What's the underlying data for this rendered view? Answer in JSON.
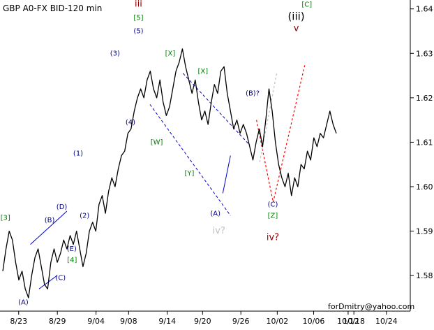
{
  "chart_data": {
    "type": "line",
    "title": "GBP A0-FX BID-120 min",
    "xlabel": "",
    "ylabel": "",
    "x_ticks": [
      "8/23",
      "8/29",
      "9/04",
      "9/08",
      "9/14",
      "9/20",
      "9/26",
      "10/02",
      "10/06",
      "10/12",
      "10/18",
      "10/24"
    ],
    "ylim": [
      1.572,
      1.642
    ],
    "y_ticks": [
      "1.64",
      "1.63",
      "1.62",
      "1.61",
      "1.60",
      "1.59",
      "1.58"
    ],
    "grid": false,
    "series": [
      {
        "values": [
          1.581,
          1.586,
          1.59,
          1.588,
          1.583,
          1.579,
          1.581,
          1.577,
          1.575,
          1.58,
          1.584,
          1.586,
          1.582,
          1.578,
          1.577,
          1.583,
          1.586,
          1.583,
          1.585,
          1.588,
          1.586,
          1.589,
          1.587,
          1.59,
          1.586,
          1.582,
          1.585,
          1.59,
          1.592,
          1.59,
          1.596,
          1.598,
          1.594,
          1.599,
          1.602,
          1.6,
          1.604,
          1.607,
          1.608,
          1.612,
          1.613,
          1.617,
          1.62,
          1.622,
          1.62,
          1.624,
          1.626,
          1.622,
          1.62,
          1.624,
          1.619,
          1.616,
          1.618,
          1.622,
          1.626,
          1.628,
          1.631,
          1.627,
          1.624,
          1.621,
          1.624,
          1.619,
          1.615,
          1.617,
          1.614,
          1.619,
          1.623,
          1.621,
          1.626,
          1.627,
          1.621,
          1.617,
          1.613,
          1.615,
          1.612,
          1.614,
          1.612,
          1.609,
          1.606,
          1.61,
          1.613,
          1.609,
          1.615,
          1.622,
          1.617,
          1.61,
          1.605,
          1.602,
          1.6,
          1.603,
          1.598,
          1.602,
          1.6,
          1.605,
          1.604,
          1.608,
          1.606,
          1.611,
          1.609,
          1.612,
          1.611,
          1.614,
          1.617,
          1.614,
          1.612
        ]
      }
    ],
    "wave_labels": [
      {
        "text": "[3]",
        "color": "#008000",
        "x": 0.8,
        "y": 1.5925
      },
      {
        "text": "(A)",
        "color": "#000080",
        "x": 6.4,
        "y": 1.5735
      },
      {
        "text": "(B)",
        "color": "#000080",
        "x": 14.6,
        "y": 1.592
      },
      {
        "text": "(C)",
        "color": "#000080",
        "x": 18.0,
        "y": 1.579
      },
      {
        "text": "(D)",
        "color": "#000080",
        "x": 18.4,
        "y": 1.595
      },
      {
        "text": "(E)",
        "color": "#000080",
        "x": 21.5,
        "y": 1.5855
      },
      {
        "text": "[4]",
        "color": "#008000",
        "x": 21.6,
        "y": 1.583
      },
      {
        "text": "(1)",
        "color": "#000080",
        "x": 23.5,
        "y": 1.607
      },
      {
        "text": "(2)",
        "color": "#000080",
        "x": 25.5,
        "y": 1.593
      },
      {
        "text": "(3)",
        "color": "#000080",
        "x": 35.0,
        "y": 1.6295
      },
      {
        "text": "(4)",
        "color": "#000080",
        "x": 39.8,
        "y": 1.614
      },
      {
        "text": "(5)",
        "color": "#000080",
        "x": 42.3,
        "y": 1.6345
      },
      {
        "text": "[5]",
        "color": "#008000",
        "x": 42.3,
        "y": 1.6375
      },
      {
        "text": "iii",
        "color": "#8b0000",
        "x": 42.3,
        "y": 1.6405
      },
      {
        "text": "[W]",
        "color": "#008000",
        "x": 48.0,
        "y": 1.6095
      },
      {
        "text": "[X]",
        "color": "#008000",
        "x": 52.2,
        "y": 1.6295
      },
      {
        "text": "[X]",
        "color": "#008000",
        "x": 62.4,
        "y": 1.6255
      },
      {
        "text": "[Y]",
        "color": "#008000",
        "x": 58.2,
        "y": 1.6025
      },
      {
        "text": "(A)",
        "color": "#000080",
        "x": 66.3,
        "y": 1.5935
      },
      {
        "text": "iv?",
        "color": "#c0c0c0",
        "x": 67.4,
        "y": 1.5895
      },
      {
        "text": "(B)?",
        "color": "#000080",
        "x": 77.9,
        "y": 1.6205
      },
      {
        "text": "(C)",
        "color": "#000080",
        "x": 84.2,
        "y": 1.5955
      },
      {
        "text": "[Z]",
        "color": "#008000",
        "x": 84.2,
        "y": 1.593
      },
      {
        "text": "iv?",
        "color": "#8b0000",
        "x": 84.2,
        "y": 1.588
      },
      {
        "text": "(iii)",
        "color": "#000000",
        "x": 91.5,
        "y": 1.6375
      },
      {
        "text": "v",
        "color": "#8b0000",
        "x": 91.5,
        "y": 1.635
      },
      {
        "text": "[C]",
        "color": "#008000",
        "x": 94.8,
        "y": 1.6405
      }
    ],
    "trendlines": [
      {
        "color": "#0000cd",
        "dashed": false,
        "x1": 8.6,
        "y1": 1.587,
        "x2": 20.0,
        "y2": 1.5945
      },
      {
        "color": "#0000cd",
        "dashed": false,
        "x1": 11.3,
        "y1": 1.577,
        "x2": 16.9,
        "y2": 1.58
      },
      {
        "color": "#0000cd",
        "dashed": false,
        "x1": 68.6,
        "y1": 1.5985,
        "x2": 71.0,
        "y2": 1.607
      },
      {
        "color": "#0000cd",
        "dashed": true,
        "x1": 56.2,
        "y1": 1.6255,
        "x2": 76.8,
        "y2": 1.6095
      },
      {
        "color": "#0000cd",
        "dashed": true,
        "x1": 45.9,
        "y1": 1.6185,
        "x2": 71.0,
        "y2": 1.5935
      }
    ],
    "projections": [
      {
        "color": "#ff0000",
        "dashed": true,
        "points": [
          [
            79.1,
            1.615
          ],
          [
            84.3,
            1.5965
          ],
          [
            94.2,
            1.6275
          ]
        ]
      },
      {
        "color": "#c0c0c0",
        "dashed": true,
        "points": [
          [
            80.1,
            1.6055
          ],
          [
            85.4,
            1.6255
          ]
        ]
      }
    ],
    "watermark": "forDmitry@yahoo.com"
  }
}
